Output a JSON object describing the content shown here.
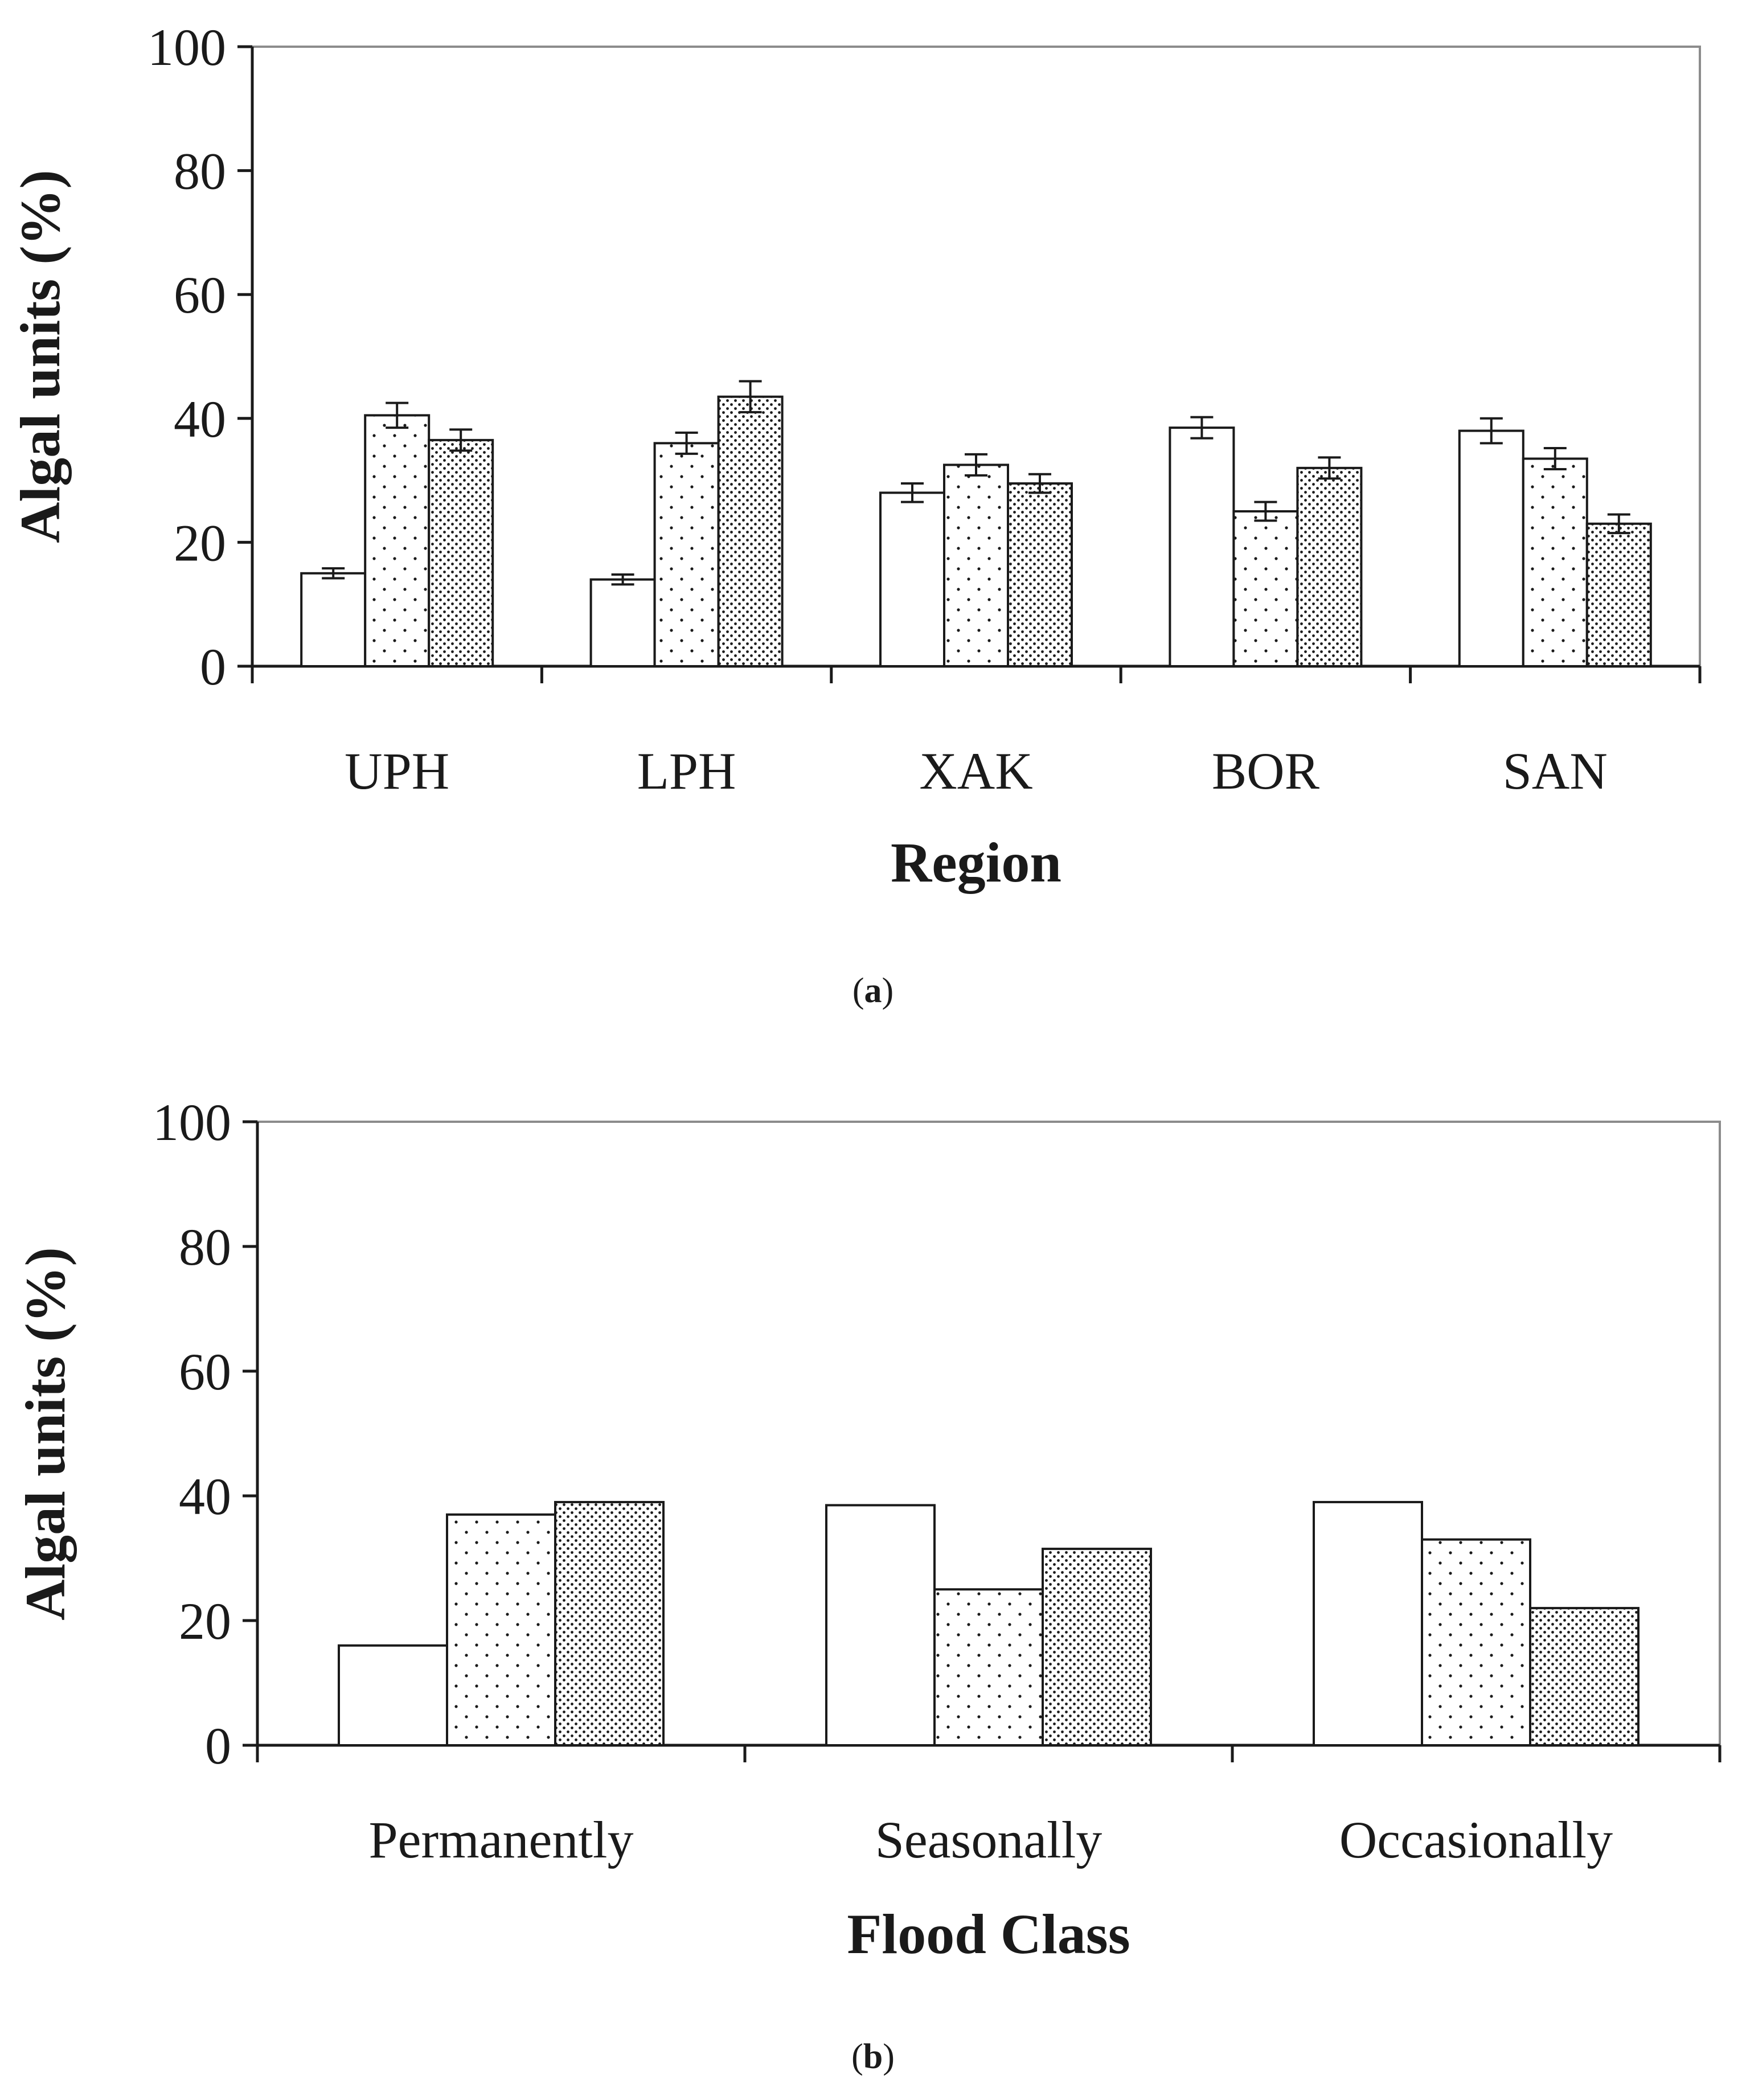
{
  "chart_data": [
    {
      "type": "bar",
      "panel_label": "a",
      "categories": [
        "UPH",
        "LPH",
        "XAK",
        "BOR",
        "SAN"
      ],
      "series": [
        {
          "name": "series 1",
          "pattern": "blank",
          "values": [
            15,
            14,
            28,
            38.5,
            38
          ],
          "errors": [
            0.8,
            0.8,
            1.5,
            1.7,
            2.0
          ]
        },
        {
          "name": "series 2",
          "pattern": "sparse-dots",
          "values": [
            40.5,
            36,
            32.5,
            25,
            33.5
          ],
          "errors": [
            2.0,
            1.7,
            1.7,
            1.5,
            1.7
          ]
        },
        {
          "name": "series 3",
          "pattern": "dense-dots",
          "values": [
            36.5,
            43.5,
            29.5,
            32,
            23
          ],
          "errors": [
            1.7,
            2.5,
            1.5,
            1.7,
            1.5
          ]
        }
      ],
      "title": "",
      "xlabel": "Region",
      "ylabel": "Algal units (%)",
      "ylim": [
        0,
        100
      ],
      "yticks": [
        "0",
        "20",
        "40",
        "60",
        "80",
        "100"
      ]
    },
    {
      "type": "bar",
      "panel_label": "b",
      "categories": [
        "Permanently",
        "Seasonally",
        "Occasionally"
      ],
      "series": [
        {
          "name": "series 1",
          "pattern": "blank",
          "values": [
            16,
            38.5,
            39
          ]
        },
        {
          "name": "series 2",
          "pattern": "sparse-dots",
          "values": [
            37,
            25,
            33
          ]
        },
        {
          "name": "series 3",
          "pattern": "dense-dots",
          "values": [
            39,
            31.5,
            22
          ]
        }
      ],
      "title": "",
      "xlabel": "Flood Class",
      "ylabel": "Algal units (%)",
      "ylim": [
        0,
        100
      ],
      "yticks": [
        "0",
        "20",
        "40",
        "60",
        "80",
        "100"
      ]
    }
  ]
}
